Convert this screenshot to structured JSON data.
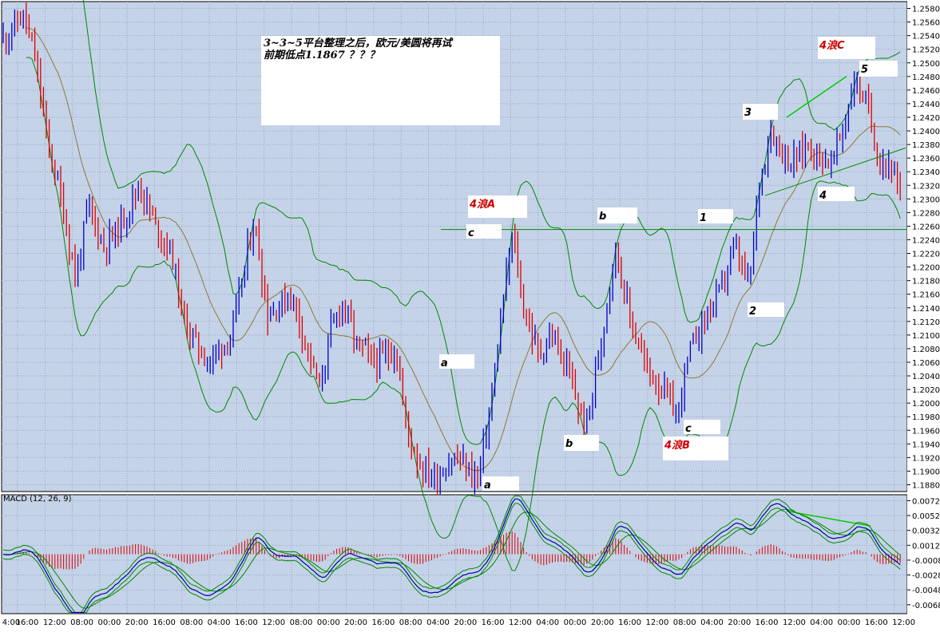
{
  "chart_data": [
    {
      "type": "candlestick",
      "pair": "EUR/USD",
      "ylim": [
        1.187,
        1.259
      ],
      "y_ticks": [
        "1.2580",
        "1.2560",
        "1.2540",
        "1.2520",
        "1.2500",
        "1.2480",
        "1.2460",
        "1.2440",
        "1.2420",
        "1.2400",
        "1.2380",
        "1.2360",
        "1.2340",
        "1.2320",
        "1.2300",
        "1.2280",
        "1.2260",
        "1.2240",
        "1.2220",
        "1.2200",
        "1.2180",
        "1.2160",
        "1.2140",
        "1.2120",
        "1.2100",
        "1.2080",
        "1.2060",
        "1.2040",
        "1.2020",
        "1.2000",
        "1.1980",
        "1.1960",
        "1.1940",
        "1.1920",
        "1.1900",
        "1.1880"
      ],
      "x_ticks": [
        "4:00",
        "16:00",
        "12:00",
        "08:00",
        "00:00",
        "20:00",
        "16:00",
        "08:00",
        "04:00",
        "16:00",
        "12:00",
        "08:00",
        "00:00",
        "20:00",
        "16:00",
        "08:00",
        "04:00",
        "20:00",
        "16:00",
        "12:00",
        "04:00",
        "00:00",
        "20:00",
        "16:00",
        "12:00",
        "08:00",
        "04:00",
        "20:00",
        "16:00",
        "12:00",
        "04:00",
        "00:00",
        "16:00",
        "12:00"
      ],
      "approx_price_path": [
        [
          0,
          1.253
        ],
        [
          30,
          1.257
        ],
        [
          45,
          1.25
        ],
        [
          60,
          1.238
        ],
        [
          75,
          1.231
        ],
        [
          95,
          1.218
        ],
        [
          110,
          1.229
        ],
        [
          130,
          1.223
        ],
        [
          150,
          1.226
        ],
        [
          175,
          1.232
        ],
        [
          195,
          1.226
        ],
        [
          215,
          1.222
        ],
        [
          230,
          1.212
        ],
        [
          260,
          1.206
        ],
        [
          290,
          1.21
        ],
        [
          318,
          1.227
        ],
        [
          335,
          1.213
        ],
        [
          365,
          1.216
        ],
        [
          385,
          1.208
        ],
        [
          400,
          1.202
        ],
        [
          415,
          1.211
        ],
        [
          430,
          1.215
        ],
        [
          445,
          1.209
        ],
        [
          470,
          1.206
        ],
        [
          495,
          1.208
        ],
        [
          510,
          1.196
        ],
        [
          525,
          1.191
        ],
        [
          545,
          1.189
        ],
        [
          570,
          1.192
        ],
        [
          598,
          1.189
        ],
        [
          615,
          1.2
        ],
        [
          630,
          1.215
        ],
        [
          642,
          1.225
        ],
        [
          655,
          1.214
        ],
        [
          675,
          1.207
        ],
        [
          690,
          1.21
        ],
        [
          710,
          1.205
        ],
        [
          733,
          1.196
        ],
        [
          750,
          1.207
        ],
        [
          770,
          1.223
        ],
        [
          790,
          1.212
        ],
        [
          810,
          1.205
        ],
        [
          835,
          1.201
        ],
        [
          848,
          1.198
        ],
        [
          862,
          1.207
        ],
        [
          880,
          1.212
        ],
        [
          900,
          1.216
        ],
        [
          920,
          1.223
        ],
        [
          938,
          1.217
        ],
        [
          950,
          1.232
        ],
        [
          965,
          1.24
        ],
        [
          990,
          1.235
        ],
        [
          1010,
          1.238
        ],
        [
          1040,
          1.235
        ],
        [
          1060,
          1.242
        ],
        [
          1070,
          1.248
        ],
        [
          1085,
          1.244
        ],
        [
          1100,
          1.236
        ],
        [
          1115,
          1.235
        ],
        [
          1130,
          1.229
        ]
      ],
      "horizontal_line": 1.2255,
      "wave_labels": [
        {
          "text": "4浪A",
          "color": "#cc0000"
        },
        {
          "text": "c",
          "color": "#000000"
        },
        {
          "text": "b",
          "color": "#000000"
        },
        {
          "text": "1",
          "color": "#000000"
        },
        {
          "text": "3",
          "color": "#000000"
        },
        {
          "text": "4浪C",
          "color": "#cc0000"
        },
        {
          "text": "5",
          "color": "#000000"
        },
        {
          "text": "4",
          "color": "#000000"
        },
        {
          "text": "2",
          "color": "#000000"
        },
        {
          "text": "a",
          "color": "#000000"
        },
        {
          "text": "b",
          "color": "#000000"
        },
        {
          "text": "a",
          "color": "#000000"
        },
        {
          "text": "c",
          "color": "#000000"
        },
        {
          "text": "4浪B",
          "color": "#cc0000"
        }
      ],
      "note": [
        "3~3~5平台整理之后，欧元/美圆将再试",
        "前期低点1.1867 ？？？"
      ]
    },
    {
      "type": "macd",
      "label": "MACD (12, 26, 9)",
      "ylim": [
        -0.008,
        0.008
      ],
      "y_ticks": [
        "0.0072",
        "0.0052",
        "0.0032",
        "0.0012",
        "-0.0008",
        "-0.0028",
        "-0.0048",
        "-0.0068"
      ]
    }
  ],
  "colors": {
    "background": "#c5d3e8",
    "grid": "#8fa3c2",
    "bull_candle": "#0000cc",
    "bear_candle": "#dd0000",
    "bollinger": "#008800",
    "midline": "#8b7a3a",
    "trendline": "#00cc00",
    "macd_line": "#0000aa",
    "signal_line": "#008800",
    "histogram": "#dd0000"
  }
}
